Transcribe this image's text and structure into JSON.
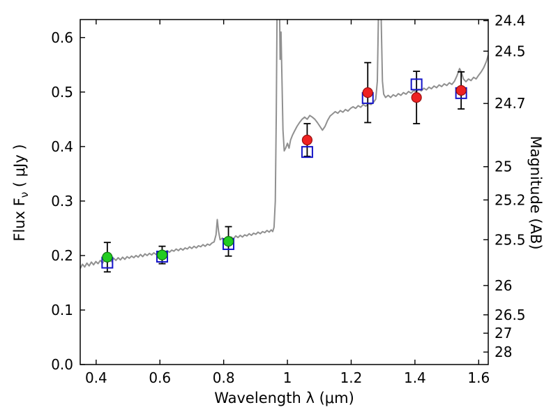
{
  "figure": {
    "background": "#ffffff"
  },
  "chart_data": {
    "type": "line",
    "title": "",
    "xlabel": "Wavelength  λ (μm)",
    "ylabel_left": {
      "prefix": "Flux  F",
      "sub": "ν",
      "suffix": "  ( μJy )"
    },
    "ylabel_right": "Magnitude (AB)",
    "xlim": [
      0.35,
      1.63
    ],
    "ylim": [
      0,
      0.633
    ],
    "grid": false,
    "legend": null,
    "x_ticks": [
      0.4,
      0.6,
      0.8,
      1.0,
      1.2,
      1.4,
      1.6
    ],
    "x_tick_labels": [
      "0.4",
      "0.6",
      "0.8",
      "1",
      "1.2",
      "1.4",
      "1.6"
    ],
    "y_ticks_left": [
      0,
      0.1,
      0.2,
      0.3,
      0.4,
      0.5,
      0.6
    ],
    "y_tick_labels_left": [
      "0.0",
      "0.1",
      "0.2",
      "0.3",
      "0.4",
      "0.5",
      "0.6"
    ],
    "right_axis": {
      "tick_labels": [
        "24.4",
        "24.5",
        "24.7",
        "25",
        "25.2",
        "25.5",
        "26",
        "26.5",
        "27",
        "28"
      ],
      "tick_flux_positions": [
        0.631,
        0.575,
        0.479,
        0.363,
        0.302,
        0.229,
        0.145,
        0.0912,
        0.0575,
        0.0229
      ]
    },
    "colors": {
      "spectrum": "#909090",
      "square": "#1414c8",
      "green_point": "#22cc22",
      "green_edge": "#117711",
      "red_point": "#ee2222",
      "red_edge": "#991111",
      "errorbar": "#000000",
      "axis": "#000000"
    },
    "series": [
      {
        "name": "model-spectrum",
        "kind": "line",
        "color": "#909090",
        "linewidth": 2,
        "points": [
          [
            0.35,
            0.176
          ],
          [
            0.357,
            0.184
          ],
          [
            0.364,
            0.179
          ],
          [
            0.371,
            0.186
          ],
          [
            0.378,
            0.181
          ],
          [
            0.385,
            0.188
          ],
          [
            0.392,
            0.183
          ],
          [
            0.399,
            0.189
          ],
          [
            0.406,
            0.185
          ],
          [
            0.413,
            0.191
          ],
          [
            0.42,
            0.186
          ],
          [
            0.427,
            0.192
          ],
          [
            0.434,
            0.188
          ],
          [
            0.441,
            0.193
          ],
          [
            0.448,
            0.189
          ],
          [
            0.455,
            0.195
          ],
          [
            0.462,
            0.191
          ],
          [
            0.469,
            0.196
          ],
          [
            0.476,
            0.192
          ],
          [
            0.483,
            0.197
          ],
          [
            0.49,
            0.193
          ],
          [
            0.497,
            0.198
          ],
          [
            0.504,
            0.195
          ],
          [
            0.511,
            0.199
          ],
          [
            0.518,
            0.196
          ],
          [
            0.525,
            0.2
          ],
          [
            0.532,
            0.197
          ],
          [
            0.539,
            0.202
          ],
          [
            0.546,
            0.198
          ],
          [
            0.553,
            0.203
          ],
          [
            0.56,
            0.2
          ],
          [
            0.567,
            0.204
          ],
          [
            0.574,
            0.201
          ],
          [
            0.581,
            0.205
          ],
          [
            0.588,
            0.202
          ],
          [
            0.595,
            0.206
          ],
          [
            0.602,
            0.203
          ],
          [
            0.609,
            0.208
          ],
          [
            0.616,
            0.205
          ],
          [
            0.623,
            0.209
          ],
          [
            0.63,
            0.206
          ],
          [
            0.637,
            0.21
          ],
          [
            0.644,
            0.208
          ],
          [
            0.651,
            0.212
          ],
          [
            0.658,
            0.209
          ],
          [
            0.665,
            0.213
          ],
          [
            0.672,
            0.21
          ],
          [
            0.679,
            0.214
          ],
          [
            0.686,
            0.212
          ],
          [
            0.693,
            0.216
          ],
          [
            0.7,
            0.213
          ],
          [
            0.707,
            0.217
          ],
          [
            0.714,
            0.214
          ],
          [
            0.721,
            0.218
          ],
          [
            0.728,
            0.216
          ],
          [
            0.735,
            0.22
          ],
          [
            0.742,
            0.217
          ],
          [
            0.749,
            0.221
          ],
          [
            0.756,
            0.219
          ],
          [
            0.763,
            0.223
          ],
          [
            0.77,
            0.225
          ],
          [
            0.776,
            0.238
          ],
          [
            0.78,
            0.266
          ],
          [
            0.784,
            0.244
          ],
          [
            0.789,
            0.229
          ],
          [
            0.796,
            0.232
          ],
          [
            0.803,
            0.229
          ],
          [
            0.81,
            0.233
          ],
          [
            0.817,
            0.23
          ],
          [
            0.824,
            0.234
          ],
          [
            0.831,
            0.231
          ],
          [
            0.838,
            0.236
          ],
          [
            0.845,
            0.233
          ],
          [
            0.852,
            0.237
          ],
          [
            0.859,
            0.234
          ],
          [
            0.866,
            0.238
          ],
          [
            0.873,
            0.236
          ],
          [
            0.88,
            0.24
          ],
          [
            0.887,
            0.237
          ],
          [
            0.894,
            0.241
          ],
          [
            0.901,
            0.239
          ],
          [
            0.908,
            0.243
          ],
          [
            0.915,
            0.24
          ],
          [
            0.922,
            0.244
          ],
          [
            0.929,
            0.242
          ],
          [
            0.936,
            0.246
          ],
          [
            0.943,
            0.243
          ],
          [
            0.949,
            0.247
          ],
          [
            0.954,
            0.244
          ],
          [
            0.958,
            0.252
          ],
          [
            0.962,
            0.3
          ],
          [
            0.965,
            0.46
          ],
          [
            0.968,
            0.68
          ],
          [
            0.971,
            0.78
          ],
          [
            0.974,
            0.72
          ],
          [
            0.977,
            0.56
          ],
          [
            0.98,
            0.61
          ],
          [
            0.983,
            0.52
          ],
          [
            0.986,
            0.43
          ],
          [
            0.99,
            0.392
          ],
          [
            0.995,
            0.398
          ],
          [
            1.0,
            0.406
          ],
          [
            1.005,
            0.397
          ],
          [
            1.01,
            0.412
          ],
          [
            1.016,
            0.421
          ],
          [
            1.022,
            0.428
          ],
          [
            1.03,
            0.437
          ],
          [
            1.038,
            0.444
          ],
          [
            1.046,
            0.45
          ],
          [
            1.054,
            0.454
          ],
          [
            1.062,
            0.45
          ],
          [
            1.07,
            0.457
          ],
          [
            1.078,
            0.454
          ],
          [
            1.086,
            0.45
          ],
          [
            1.094,
            0.444
          ],
          [
            1.102,
            0.437
          ],
          [
            1.11,
            0.43
          ],
          [
            1.118,
            0.437
          ],
          [
            1.126,
            0.448
          ],
          [
            1.134,
            0.456
          ],
          [
            1.142,
            0.46
          ],
          [
            1.15,
            0.464
          ],
          [
            1.158,
            0.461
          ],
          [
            1.166,
            0.466
          ],
          [
            1.174,
            0.463
          ],
          [
            1.182,
            0.468
          ],
          [
            1.19,
            0.465
          ],
          [
            1.198,
            0.47
          ],
          [
            1.206,
            0.473
          ],
          [
            1.214,
            0.47
          ],
          [
            1.222,
            0.475
          ],
          [
            1.23,
            0.472
          ],
          [
            1.238,
            0.477
          ],
          [
            1.246,
            0.474
          ],
          [
            1.254,
            0.479
          ],
          [
            1.262,
            0.477
          ],
          [
            1.27,
            0.481
          ],
          [
            1.277,
            0.487
          ],
          [
            1.282,
            0.52
          ],
          [
            1.286,
            0.66
          ],
          [
            1.29,
            0.73
          ],
          [
            1.294,
            0.64
          ],
          [
            1.298,
            0.52
          ],
          [
            1.302,
            0.496
          ],
          [
            1.308,
            0.49
          ],
          [
            1.316,
            0.494
          ],
          [
            1.324,
            0.49
          ],
          [
            1.332,
            0.495
          ],
          [
            1.34,
            0.492
          ],
          [
            1.348,
            0.497
          ],
          [
            1.356,
            0.494
          ],
          [
            1.364,
            0.499
          ],
          [
            1.372,
            0.496
          ],
          [
            1.38,
            0.501
          ],
          [
            1.388,
            0.498
          ],
          [
            1.396,
            0.503
          ],
          [
            1.404,
            0.5
          ],
          [
            1.412,
            0.505
          ],
          [
            1.42,
            0.502
          ],
          [
            1.428,
            0.507
          ],
          [
            1.436,
            0.504
          ],
          [
            1.444,
            0.509
          ],
          [
            1.452,
            0.506
          ],
          [
            1.46,
            0.511
          ],
          [
            1.468,
            0.508
          ],
          [
            1.476,
            0.513
          ],
          [
            1.484,
            0.51
          ],
          [
            1.492,
            0.515
          ],
          [
            1.5,
            0.512
          ],
          [
            1.508,
            0.517
          ],
          [
            1.516,
            0.514
          ],
          [
            1.524,
            0.52
          ],
          [
            1.532,
            0.53
          ],
          [
            1.54,
            0.543
          ],
          [
            1.546,
            0.536
          ],
          [
            1.552,
            0.524
          ],
          [
            1.56,
            0.519
          ],
          [
            1.568,
            0.524
          ],
          [
            1.576,
            0.521
          ],
          [
            1.584,
            0.527
          ],
          [
            1.592,
            0.524
          ],
          [
            1.6,
            0.531
          ],
          [
            1.608,
            0.537
          ],
          [
            1.616,
            0.545
          ],
          [
            1.624,
            0.556
          ],
          [
            1.63,
            0.568
          ]
        ]
      },
      {
        "name": "model-photometry-squares",
        "kind": "square-open",
        "color": "#1414c8",
        "size": 15,
        "linewidth": 2,
        "points": [
          [
            0.435,
            0.187
          ],
          [
            0.607,
            0.198
          ],
          [
            0.815,
            0.221
          ],
          [
            1.062,
            0.39
          ],
          [
            1.252,
            0.489
          ],
          [
            1.405,
            0.514
          ],
          [
            1.545,
            0.498
          ]
        ]
      },
      {
        "name": "observed-photometry-optical",
        "kind": "circle",
        "color": "#22cc22",
        "edge": "#117711",
        "radius": 7,
        "points": [
          [
            0.435,
            0.197
          ],
          [
            0.607,
            0.201
          ],
          [
            0.815,
            0.226
          ]
        ],
        "yerr": [
          0.027,
          0.016,
          0.027
        ]
      },
      {
        "name": "observed-photometry-nir",
        "kind": "circle",
        "color": "#ee2222",
        "edge": "#991111",
        "radius": 7,
        "points": [
          [
            1.062,
            0.412
          ],
          [
            1.252,
            0.499
          ],
          [
            1.405,
            0.49
          ],
          [
            1.545,
            0.503
          ]
        ],
        "yerr": [
          0.03,
          0.055,
          0.048,
          0.034
        ]
      }
    ]
  }
}
